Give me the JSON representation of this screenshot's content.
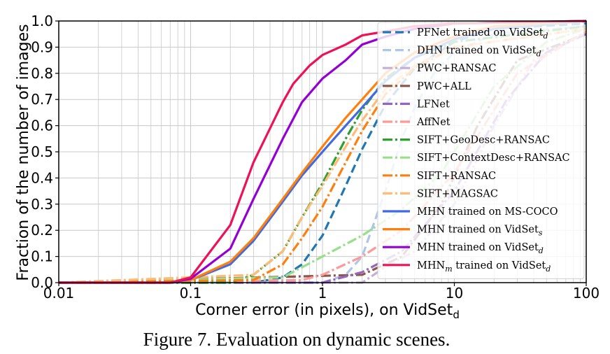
{
  "chart_data": {
    "type": "line",
    "x_scale": "log",
    "xlim": [
      0.01,
      100
    ],
    "ylim": [
      0.0,
      1.0
    ],
    "xlabel": "Corner error (in pixels), on VidSet",
    "xlabel_sub": "d",
    "ylabel": "Fraction of the number of images",
    "x_ticks": [
      0.01,
      0.1,
      1,
      10,
      100
    ],
    "x_tick_labels": [
      "0.01",
      "0.1",
      "1",
      "10",
      "100"
    ],
    "y_ticks": [
      0.0,
      0.1,
      0.2,
      0.3,
      0.4,
      0.5,
      0.6,
      0.7,
      0.8,
      0.9,
      1.0
    ],
    "y_tick_labels": [
      "0.0",
      "0.1",
      "0.2",
      "0.3",
      "0.4",
      "0.5",
      "0.6",
      "0.7",
      "0.8",
      "0.9",
      "1.0"
    ],
    "grid": true,
    "legend_position": "top-right",
    "series": [
      {
        "name": "PFNet trained on VidSet",
        "sub": "d",
        "color": "#1f77b4",
        "dash": "12,6",
        "points": [
          [
            0.01,
            0
          ],
          [
            0.3,
            0
          ],
          [
            0.5,
            0.02
          ],
          [
            0.7,
            0.07
          ],
          [
            1,
            0.18
          ],
          [
            1.5,
            0.37
          ],
          [
            2,
            0.51
          ],
          [
            3,
            0.68
          ],
          [
            5,
            0.82
          ],
          [
            10,
            0.92
          ],
          [
            20,
            0.97
          ],
          [
            100,
            0.99
          ]
        ]
      },
      {
        "name": "DHN trained on VidSet",
        "sub": "d",
        "color": "#aec7e8",
        "dash": "12,6",
        "points": [
          [
            0.01,
            0
          ],
          [
            1,
            0
          ],
          [
            1.5,
            0.03
          ],
          [
            2,
            0.1
          ],
          [
            3,
            0.35
          ],
          [
            4,
            0.55
          ],
          [
            5,
            0.67
          ],
          [
            7,
            0.8
          ],
          [
            10,
            0.88
          ],
          [
            20,
            0.95
          ],
          [
            100,
            0.98
          ]
        ]
      },
      {
        "name": "PWC+RANSAC",
        "sub": "",
        "color": "#c5b0d5",
        "dash": "14,4,3,4",
        "points": [
          [
            0.01,
            0
          ],
          [
            2,
            0
          ],
          [
            3,
            0.06
          ],
          [
            5,
            0.12
          ],
          [
            10,
            0.3
          ],
          [
            20,
            0.6
          ],
          [
            40,
            0.85
          ],
          [
            100,
            0.96
          ]
        ]
      },
      {
        "name": "PWC+ALL",
        "sub": "",
        "color": "#8c564b",
        "dash": "14,4,3,4",
        "points": [
          [
            0.01,
            0
          ],
          [
            2,
            0.03
          ],
          [
            4,
            0.1
          ],
          [
            8,
            0.3
          ],
          [
            15,
            0.6
          ],
          [
            30,
            0.85
          ],
          [
            100,
            0.95
          ]
        ]
      },
      {
        "name": "LFNet",
        "sub": "",
        "color": "#9467bd",
        "dash": "14,4,3,4",
        "points": [
          [
            0.01,
            0
          ],
          [
            1,
            0
          ],
          [
            2,
            0.04
          ],
          [
            4,
            0.12
          ],
          [
            10,
            0.35
          ],
          [
            25,
            0.7
          ],
          [
            50,
            0.88
          ],
          [
            100,
            0.95
          ]
        ]
      },
      {
        "name": "AffNet",
        "sub": "",
        "color": "#ff9896",
        "dash": "14,4,3,4",
        "points": [
          [
            0.01,
            0
          ],
          [
            0.7,
            0.01
          ],
          [
            1,
            0.03
          ],
          [
            2,
            0.1
          ],
          [
            4,
            0.2
          ],
          [
            10,
            0.42
          ],
          [
            30,
            0.8
          ],
          [
            100,
            0.96
          ]
        ]
      },
      {
        "name": "SIFT+GeoDesc+RANSAC",
        "sub": "",
        "color": "#2ca02c",
        "dash": "14,4,3,4",
        "points": [
          [
            0.01,
            0
          ],
          [
            0.2,
            0
          ],
          [
            0.3,
            0.03
          ],
          [
            0.5,
            0.12
          ],
          [
            0.7,
            0.25
          ],
          [
            1,
            0.38
          ],
          [
            1.5,
            0.55
          ],
          [
            2,
            0.66
          ],
          [
            3,
            0.78
          ],
          [
            5,
            0.86
          ],
          [
            10,
            0.92
          ],
          [
            100,
            0.98
          ]
        ]
      },
      {
        "name": "SIFT+ContextDesc+RANSAC",
        "sub": "",
        "color": "#98df8a",
        "dash": "14,4,3,4",
        "points": [
          [
            0.01,
            0
          ],
          [
            0.5,
            0.02
          ],
          [
            1,
            0.1
          ],
          [
            2,
            0.18
          ],
          [
            4,
            0.28
          ],
          [
            8,
            0.42
          ],
          [
            20,
            0.75
          ],
          [
            50,
            0.92
          ],
          [
            100,
            0.97
          ]
        ]
      },
      {
        "name": "SIFT+RANSAC",
        "sub": "",
        "color": "#ff7f0e",
        "dash": "14,4,3,4",
        "points": [
          [
            0.01,
            0
          ],
          [
            0.3,
            0.01
          ],
          [
            0.5,
            0.07
          ],
          [
            0.7,
            0.17
          ],
          [
            1,
            0.29
          ],
          [
            1.5,
            0.46
          ],
          [
            2,
            0.58
          ],
          [
            3,
            0.72
          ],
          [
            5,
            0.82
          ],
          [
            10,
            0.9
          ],
          [
            100,
            0.97
          ]
        ]
      },
      {
        "name": "SIFT+MAGSAC",
        "sub": "",
        "color": "#ffbb78",
        "dash": "14,4,3,4",
        "points": [
          [
            0.01,
            0
          ],
          [
            0.3,
            0.03
          ],
          [
            0.5,
            0.12
          ],
          [
            0.7,
            0.25
          ],
          [
            1,
            0.37
          ],
          [
            1.5,
            0.52
          ],
          [
            2,
            0.62
          ],
          [
            3,
            0.74
          ],
          [
            5,
            0.83
          ],
          [
            10,
            0.9
          ],
          [
            100,
            0.97
          ]
        ]
      },
      {
        "name": "MHN trained on MS-COCO",
        "sub": "",
        "color": "#4169e1",
        "dash": "",
        "points": [
          [
            0.01,
            0
          ],
          [
            0.07,
            0
          ],
          [
            0.1,
            0.01
          ],
          [
            0.2,
            0.07
          ],
          [
            0.3,
            0.16
          ],
          [
            0.5,
            0.31
          ],
          [
            0.7,
            0.41
          ],
          [
            1,
            0.5
          ],
          [
            1.5,
            0.6
          ],
          [
            2,
            0.67
          ],
          [
            3,
            0.77
          ],
          [
            5,
            0.86
          ],
          [
            10,
            0.93
          ],
          [
            20,
            0.97
          ],
          [
            100,
            1.0
          ]
        ]
      },
      {
        "name": "MHN trained on VidSet",
        "sub": "s",
        "color": "#ff7f0e",
        "dash": "",
        "points": [
          [
            0.01,
            0
          ],
          [
            0.07,
            0
          ],
          [
            0.1,
            0.01
          ],
          [
            0.2,
            0.08
          ],
          [
            0.3,
            0.17
          ],
          [
            0.5,
            0.32
          ],
          [
            0.7,
            0.42
          ],
          [
            1,
            0.52
          ],
          [
            1.5,
            0.63
          ],
          [
            2,
            0.7
          ],
          [
            3,
            0.8
          ],
          [
            5,
            0.88
          ],
          [
            10,
            0.94
          ],
          [
            20,
            0.98
          ],
          [
            100,
            1.0
          ]
        ]
      },
      {
        "name": "MHN trained on VidSet",
        "sub": "d",
        "color": "#9400d3",
        "dash": "",
        "points": [
          [
            0.01,
            0
          ],
          [
            0.07,
            0
          ],
          [
            0.1,
            0.015
          ],
          [
            0.2,
            0.13
          ],
          [
            0.3,
            0.32
          ],
          [
            0.5,
            0.55
          ],
          [
            0.7,
            0.69
          ],
          [
            1,
            0.78
          ],
          [
            1.5,
            0.85
          ],
          [
            2,
            0.91
          ],
          [
            3,
            0.94
          ],
          [
            5,
            0.97
          ],
          [
            10,
            0.99
          ],
          [
            100,
            1.0
          ]
        ]
      },
      {
        "name": "MHN",
        "sub": "m",
        "suffix": " trained on VidSet",
        "sub2": "d",
        "color": "#ee1155",
        "dash": "",
        "points": [
          [
            0.01,
            0
          ],
          [
            0.07,
            0
          ],
          [
            0.1,
            0.02
          ],
          [
            0.2,
            0.22
          ],
          [
            0.3,
            0.46
          ],
          [
            0.5,
            0.69
          ],
          [
            0.6,
            0.76
          ],
          [
            0.8,
            0.83
          ],
          [
            1,
            0.87
          ],
          [
            1.5,
            0.91
          ],
          [
            2,
            0.945
          ],
          [
            3,
            0.96
          ],
          [
            5,
            0.98
          ],
          [
            10,
            0.99
          ],
          [
            100,
            1.0
          ]
        ]
      }
    ]
  },
  "caption": "Figure 7. Evaluation on dynamic scenes."
}
